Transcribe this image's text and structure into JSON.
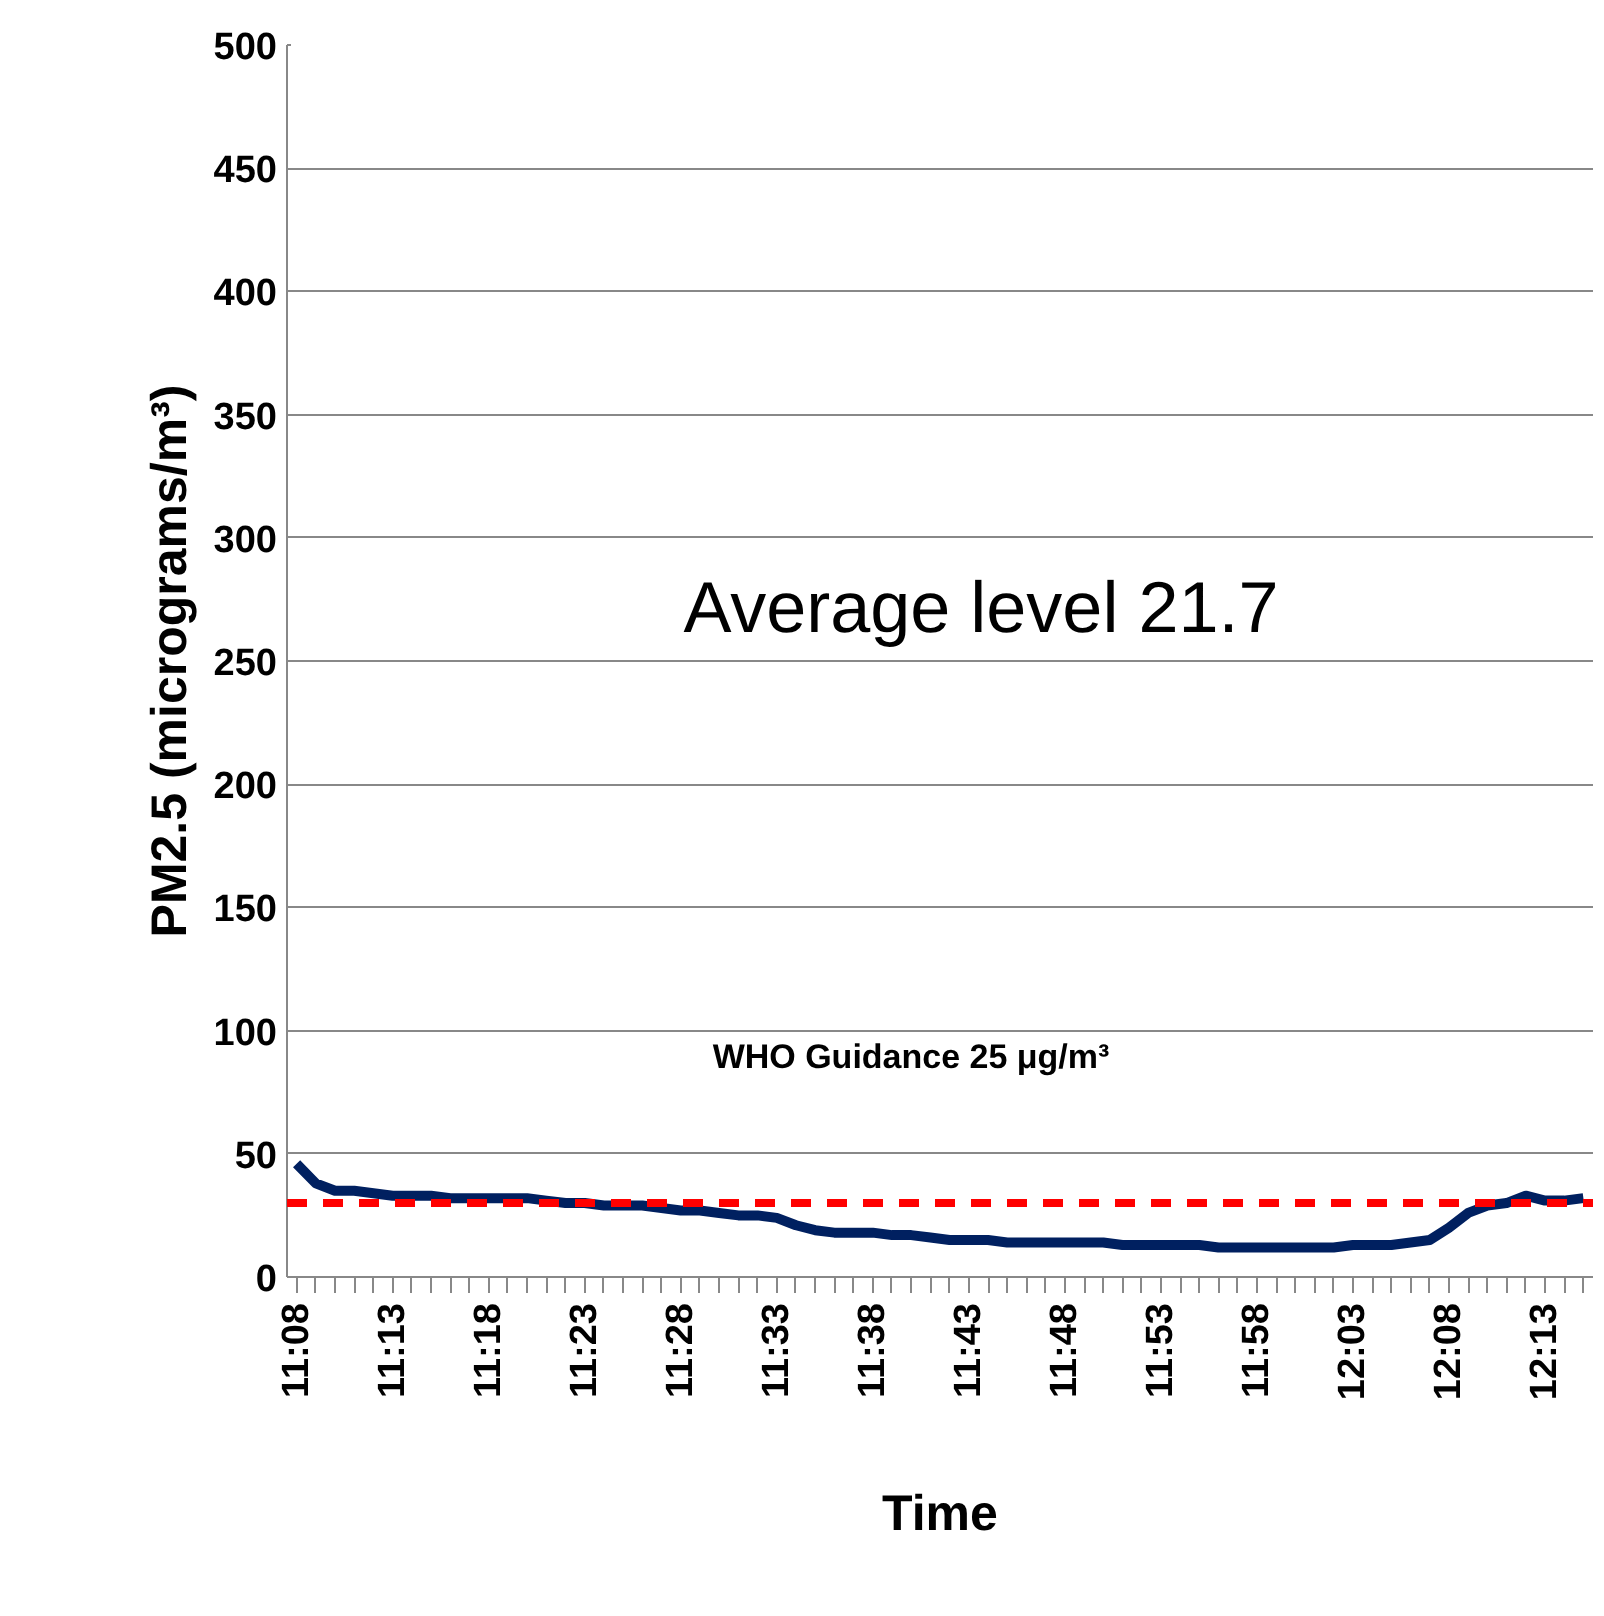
{
  "chart_data": {
    "type": "line",
    "xlabel": "Time",
    "ylabel": "PM2.5 (micrograms/m³)",
    "categories": [
      "11:08",
      null,
      null,
      null,
      null,
      "11:13",
      null,
      null,
      null,
      null,
      "11:18",
      null,
      null,
      null,
      null,
      "11:23",
      null,
      null,
      null,
      null,
      "11:28",
      null,
      null,
      null,
      null,
      "11:33",
      null,
      null,
      null,
      null,
      "11:38",
      null,
      null,
      null,
      null,
      "11:43",
      null,
      null,
      null,
      null,
      "11:48",
      null,
      null,
      null,
      null,
      "11:53",
      null,
      null,
      null,
      null,
      "11:58",
      null,
      null,
      null,
      null,
      "12:03",
      null,
      null,
      null,
      null,
      "12:08",
      null,
      null,
      null,
      null,
      "12:13",
      null,
      null
    ],
    "series": [
      {
        "color": "#002060",
        "values": [
          46,
          38,
          35,
          35,
          34,
          33,
          33,
          33,
          32,
          32,
          32,
          32,
          32,
          31,
          30,
          30,
          29,
          29,
          29,
          28,
          27,
          27,
          26,
          25,
          25,
          24,
          21,
          19,
          18,
          18,
          18,
          17,
          17,
          16,
          15,
          15,
          15,
          14,
          14,
          14,
          14,
          14,
          14,
          13,
          13,
          13,
          13,
          13,
          12,
          12,
          12,
          12,
          12,
          12,
          12,
          13,
          13,
          13,
          14,
          15,
          20,
          26,
          29,
          30,
          33,
          31,
          31,
          32
        ]
      }
    ],
    "ylim": [
      0,
      500
    ],
    "yticks": [
      0,
      50,
      100,
      150,
      200,
      250,
      300,
      350,
      400,
      450,
      500
    ],
    "grid": "y",
    "marker": "none",
    "line_style": "solid",
    "ref_lines": [
      {
        "axis": "y",
        "value": 30,
        "color": "#ff0000",
        "line_style": "dashed"
      }
    ],
    "annotations": [
      "Average level 21.7",
      "WHO Guidance 25 μg/m³"
    ]
  }
}
